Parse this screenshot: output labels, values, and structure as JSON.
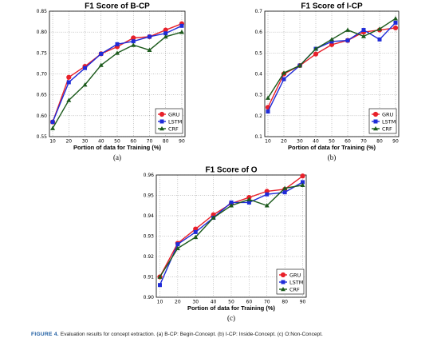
{
  "caption": {
    "label": "FIGURE 4.",
    "text": "Evaluation results for concept extraction. (a) B-CP: Begin-Concept. (b) I-CP: Inside-Concept. (c) O:Non-Concept."
  },
  "colors": {
    "GRU": "#e8202a",
    "LSTM": "#1f2bd8",
    "CRF": "#1c5a1c"
  },
  "chart_data": [
    {
      "type": "line",
      "panel_label": "(a)",
      "title": "F1 Score of B-CP",
      "xlabel": "Portion of data for Training (%)",
      "ylabel": "",
      "x": [
        10,
        20,
        30,
        40,
        50,
        60,
        70,
        80,
        90
      ],
      "xlim": [
        8,
        92
      ],
      "ylim": [
        0.55,
        0.85
      ],
      "yticks": [
        "0.55",
        "0.60",
        "0.65",
        "0.70",
        "0.75",
        "0.80",
        "0.85"
      ],
      "grid": true,
      "legend": "bottom-right",
      "series": [
        {
          "name": "GRU",
          "marker": "circle",
          "values": [
            0.585,
            0.692,
            0.718,
            0.748,
            0.765,
            0.786,
            0.789,
            0.805,
            0.82
          ]
        },
        {
          "name": "LSTM",
          "marker": "square",
          "values": [
            0.585,
            0.68,
            0.714,
            0.748,
            0.771,
            0.778,
            0.789,
            0.797,
            0.815
          ]
        },
        {
          "name": "CRF",
          "marker": "triangle",
          "values": [
            0.57,
            0.637,
            0.674,
            0.721,
            0.75,
            0.769,
            0.757,
            0.789,
            0.8
          ]
        }
      ]
    },
    {
      "type": "line",
      "panel_label": "(b)",
      "title": "F1 Score of I-CP",
      "xlabel": "Portion of data for Training (%)",
      "ylabel": "",
      "x": [
        10,
        20,
        30,
        40,
        50,
        60,
        70,
        80,
        90
      ],
      "xlim": [
        8,
        92
      ],
      "ylim": [
        0.1,
        0.7
      ],
      "yticks": [
        "0.1",
        "0.2",
        "0.3",
        "0.4",
        "0.5",
        "0.6",
        "0.7"
      ],
      "grid": true,
      "legend": "bottom-right",
      "series": [
        {
          "name": "GRU",
          "marker": "circle",
          "values": [
            0.24,
            0.4,
            0.44,
            0.495,
            0.54,
            0.56,
            0.6,
            0.61,
            0.62
          ]
        },
        {
          "name": "LSTM",
          "marker": "square",
          "values": [
            0.22,
            0.375,
            0.44,
            0.52,
            0.555,
            0.56,
            0.61,
            0.565,
            0.645
          ]
        },
        {
          "name": "CRF",
          "marker": "triangle",
          "values": [
            0.285,
            0.405,
            0.44,
            0.52,
            0.565,
            0.61,
            0.58,
            0.615,
            0.665
          ]
        }
      ]
    },
    {
      "type": "line",
      "panel_label": "(c)",
      "title": "F1 Score of O",
      "xlabel": "Portion of data for Training (%)",
      "ylabel": "",
      "x": [
        10,
        20,
        30,
        40,
        50,
        60,
        70,
        80,
        90
      ],
      "xlim": [
        8,
        92
      ],
      "ylim": [
        0.9,
        0.96
      ],
      "yticks": [
        "0.90",
        "0.91",
        "0.92",
        "0.93",
        "0.94",
        "0.95",
        "0.96"
      ],
      "grid": true,
      "legend": "bottom-right",
      "series": [
        {
          "name": "GRU",
          "marker": "circle",
          "values": [
            0.91,
            0.9265,
            0.9335,
            0.9405,
            0.946,
            0.949,
            0.952,
            0.953,
            0.9595
          ]
        },
        {
          "name": "LSTM",
          "marker": "square",
          "values": [
            0.906,
            0.926,
            0.932,
            0.939,
            0.9465,
            0.9465,
            0.9505,
            0.9515,
            0.9565
          ]
        },
        {
          "name": "CRF",
          "marker": "triangle",
          "values": [
            0.91,
            0.924,
            0.9295,
            0.939,
            0.945,
            0.948,
            0.945,
            0.9535,
            0.955
          ]
        }
      ]
    }
  ]
}
